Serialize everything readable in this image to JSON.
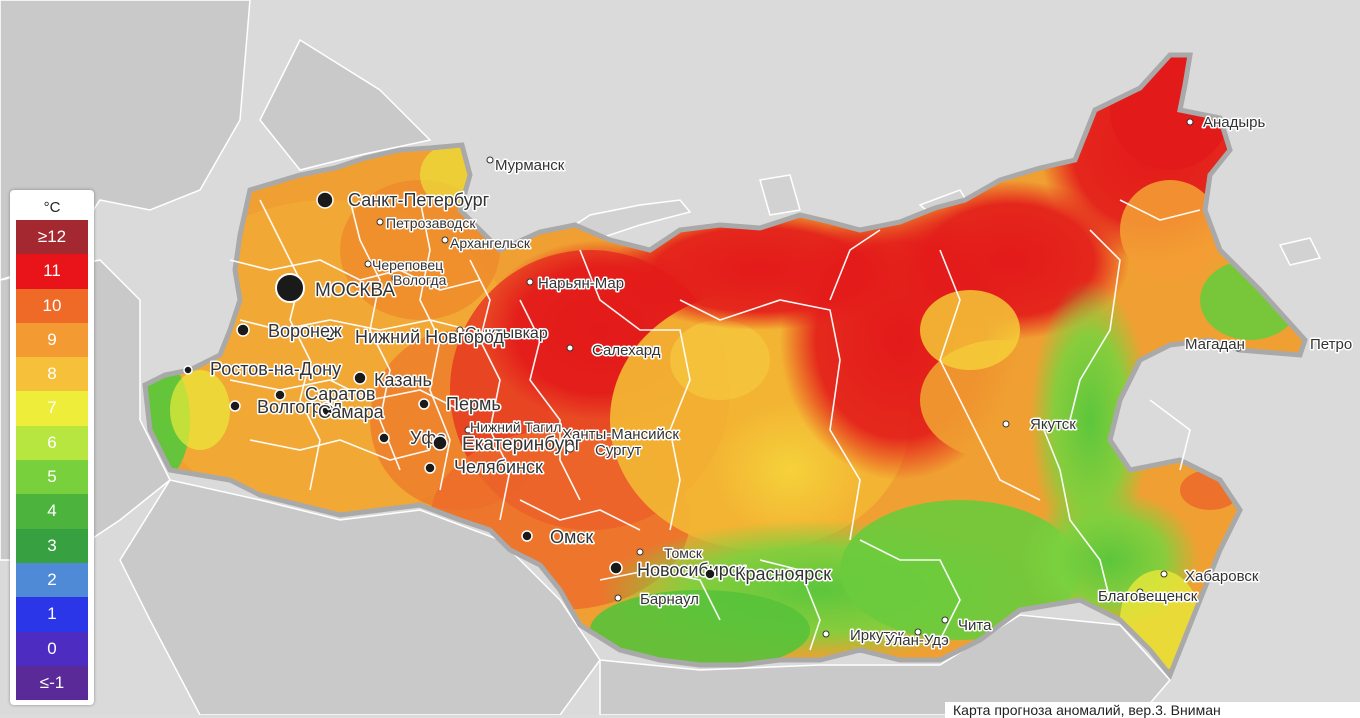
{
  "legend": {
    "unit": "°C",
    "items": [
      {
        "label": "≥12",
        "color": "#a3282f"
      },
      {
        "label": "11",
        "color": "#e8141a"
      },
      {
        "label": "10",
        "color": "#ef6a26"
      },
      {
        "label": "9",
        "color": "#f39a33"
      },
      {
        "label": "8",
        "color": "#f6c03a"
      },
      {
        "label": "7",
        "color": "#eded3a"
      },
      {
        "label": "6",
        "color": "#b6e63f"
      },
      {
        "label": "5",
        "color": "#78d13c"
      },
      {
        "label": "4",
        "color": "#4cb33d"
      },
      {
        "label": "3",
        "color": "#37a040"
      },
      {
        "label": "2",
        "color": "#4f8ad6"
      },
      {
        "label": "1",
        "color": "#2a36e8"
      },
      {
        "label": "0",
        "color": "#4d2dc1"
      },
      {
        "label": "≤-1",
        "color": "#5a2a98"
      }
    ]
  },
  "cities": [
    {
      "name": "Мурманск",
      "size": "small"
    },
    {
      "name": "Санкт-Петербург",
      "size": "large"
    },
    {
      "name": "Петрозаводск",
      "size": "small"
    },
    {
      "name": "Архангельск",
      "size": "small"
    },
    {
      "name": "Череповец",
      "size": "small"
    },
    {
      "name": "Вологда",
      "size": "small"
    },
    {
      "name": "Нарьян-Мар",
      "size": "small"
    },
    {
      "name": "МОСКВА",
      "size": "capital"
    },
    {
      "name": "Сыктывкар",
      "size": "medium"
    },
    {
      "name": "Нижний Новгород",
      "size": "large"
    },
    {
      "name": "Воронеж",
      "size": "large"
    },
    {
      "name": "Салехард",
      "size": "small"
    },
    {
      "name": "Ростов-на-Дону",
      "size": "large"
    },
    {
      "name": "Казань",
      "size": "large"
    },
    {
      "name": "Саратов",
      "size": "large"
    },
    {
      "name": "Пермь",
      "size": "large"
    },
    {
      "name": "Волгоград",
      "size": "large"
    },
    {
      "name": "Самара",
      "size": "large"
    },
    {
      "name": "Нижний Тагил",
      "size": "small"
    },
    {
      "name": "Ханты-Мансийск",
      "size": "small"
    },
    {
      "name": "Уфа",
      "size": "large"
    },
    {
      "name": "Екатеринбург",
      "size": "large"
    },
    {
      "name": "Сургут",
      "size": "small"
    },
    {
      "name": "Челябинск",
      "size": "large"
    },
    {
      "name": "Омск",
      "size": "large"
    },
    {
      "name": "Томск",
      "size": "small"
    },
    {
      "name": "Новосибирск",
      "size": "large"
    },
    {
      "name": "Красноярск",
      "size": "large"
    },
    {
      "name": "Барнаул",
      "size": "small"
    },
    {
      "name": "Иркутск",
      "size": "small"
    },
    {
      "name": "Чита",
      "size": "small"
    },
    {
      "name": "Улан-Удэ",
      "size": "small"
    },
    {
      "name": "Якутск",
      "size": "small"
    },
    {
      "name": "Анадырь",
      "size": "small"
    },
    {
      "name": "Магадан",
      "size": "small"
    },
    {
      "name": "Петро",
      "size": "small"
    },
    {
      "name": "Хабаровск",
      "size": "small"
    },
    {
      "name": "Благовещенск",
      "size": "small"
    }
  ],
  "caption": "Карта прогноза аномалий, вер.3. Вниман"
}
